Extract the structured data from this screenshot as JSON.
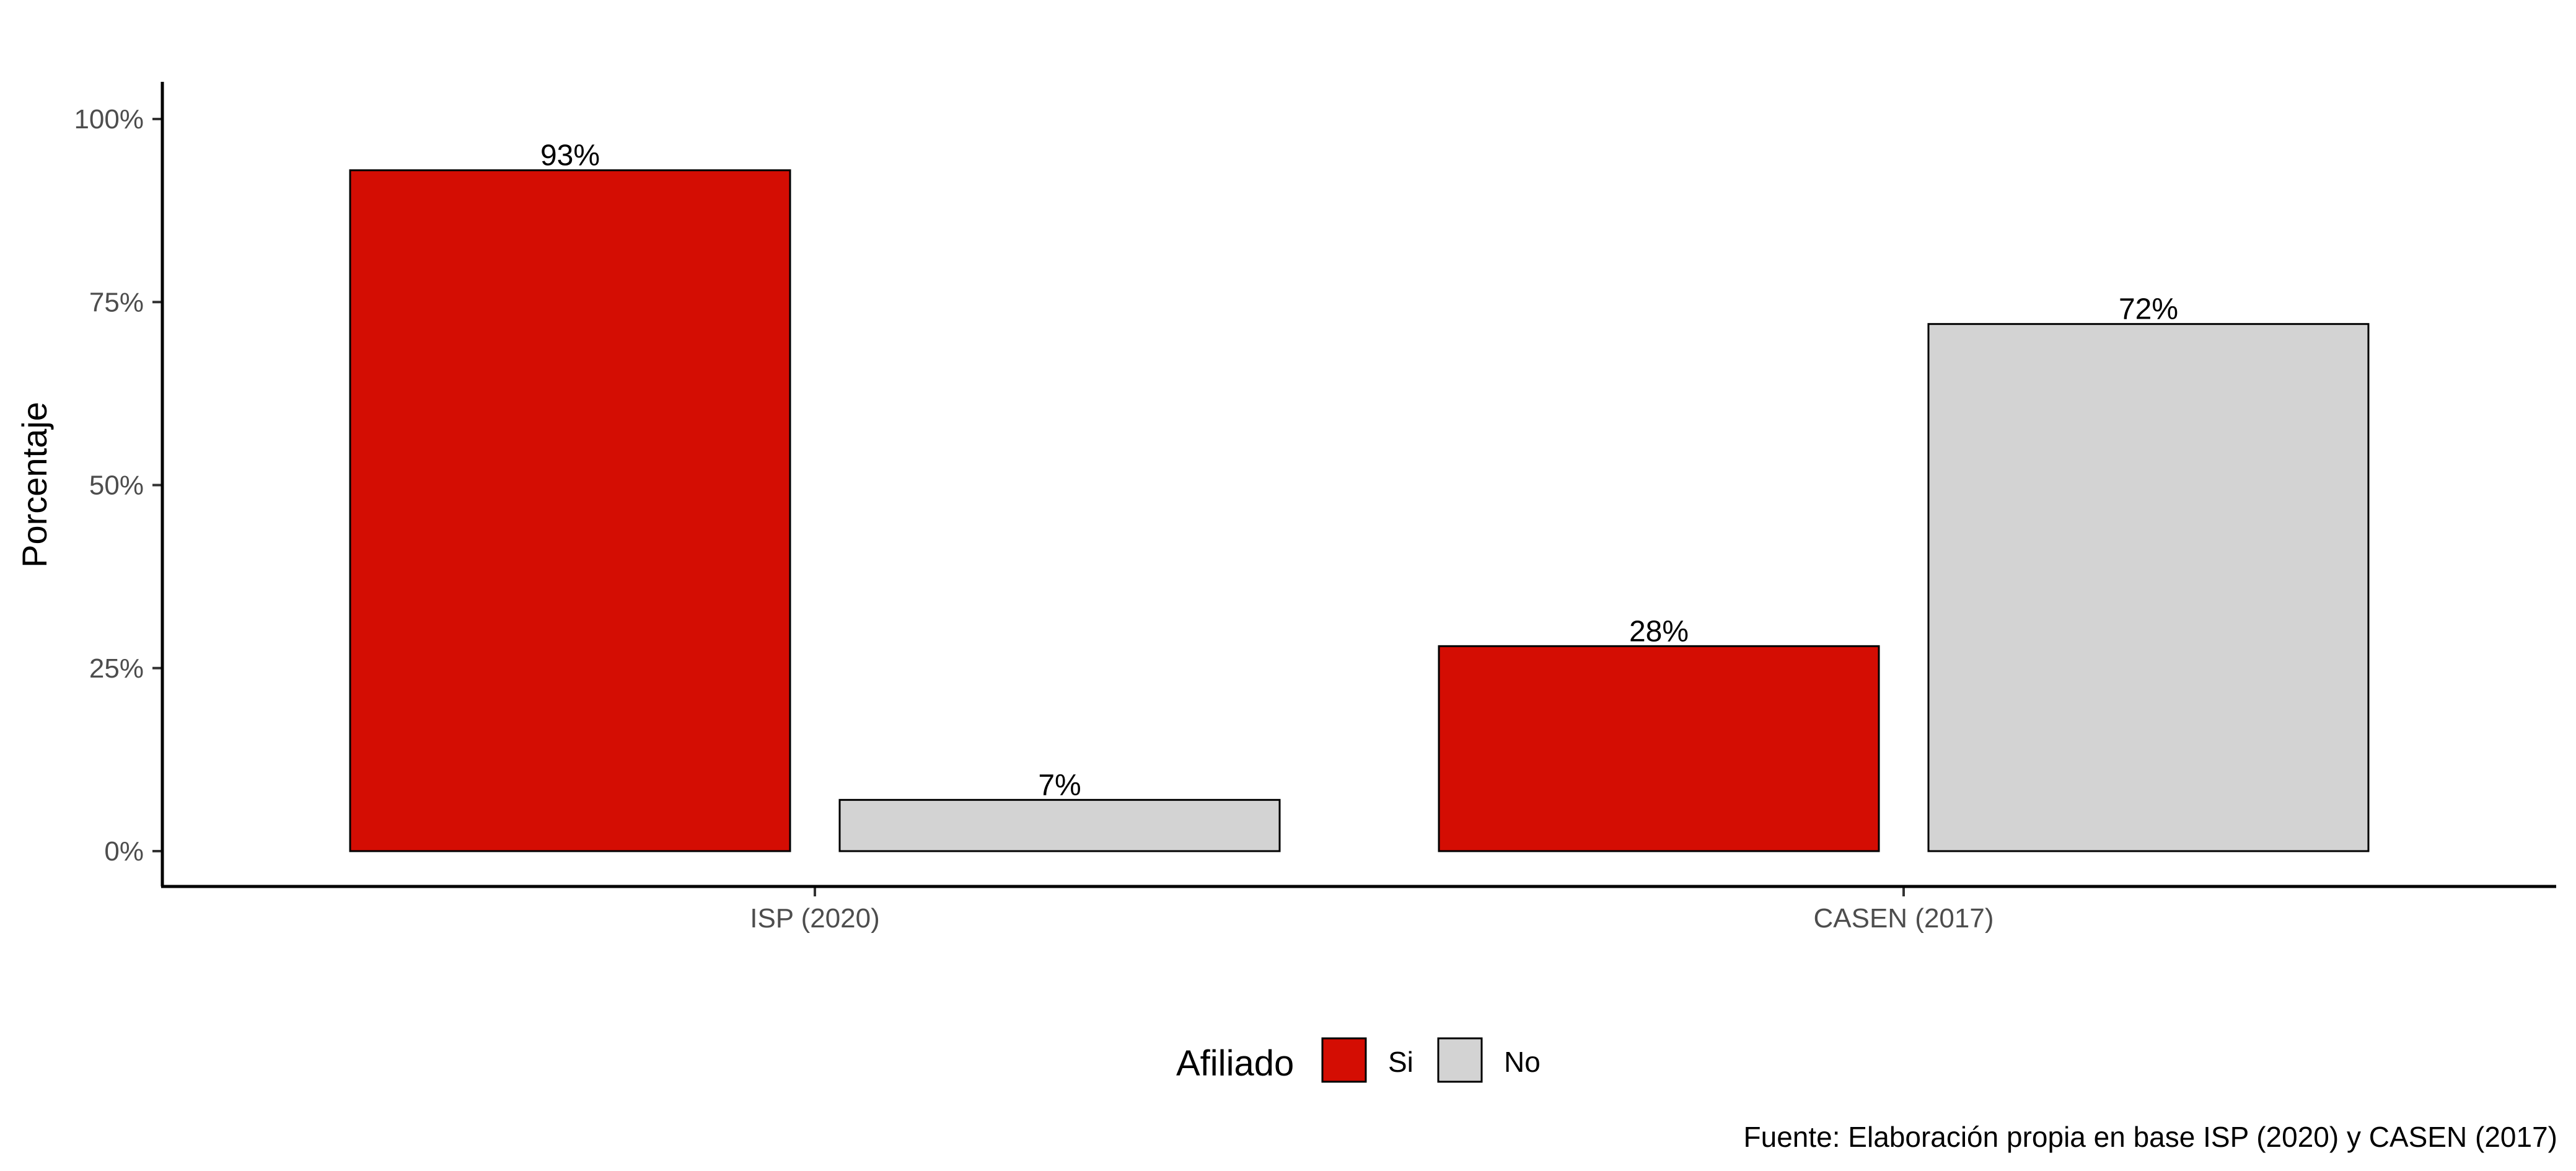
{
  "chart_data": {
    "type": "bar",
    "categories": [
      "ISP (2020)",
      "CASEN (2017)"
    ],
    "series": [
      {
        "name": "Si",
        "color": "#d40d03",
        "values": [
          93,
          28
        ],
        "labels": [
          "93%",
          "28%"
        ]
      },
      {
        "name": "No",
        "color": "#d3d3d3",
        "values": [
          7,
          72
        ],
        "labels": [
          "7%",
          "72%"
        ]
      }
    ],
    "ylabel": "Porcentaje",
    "xlabel": "",
    "ylim": [
      0,
      100
    ],
    "yticks": [
      0,
      25,
      50,
      75,
      100
    ],
    "ytick_labels": [
      "0%",
      "25%",
      "50%",
      "75%",
      "100%"
    ],
    "legend": {
      "title": "Afiliado",
      "position": "bottom"
    },
    "caption": "Fuente: Elaboración propia en base ISP (2020) y CASEN (2017)",
    "grid": false
  }
}
